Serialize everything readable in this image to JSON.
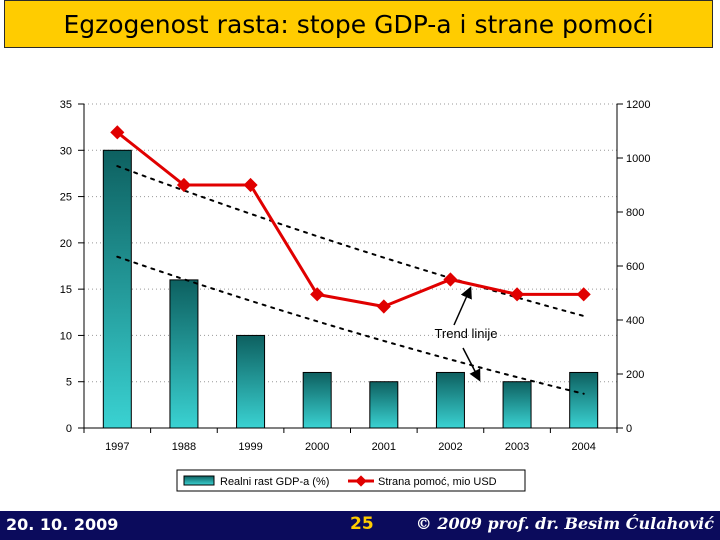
{
  "slide": {
    "title": "Egzogenost rasta: stope GDP-a i strane pomoći",
    "footer_date": "20. 10. 2009",
    "page_number": "25",
    "footer_copyright": "© 2009 prof. dr. Besim Ćulahović"
  },
  "chart_data": {
    "type": "bar",
    "categories": [
      "1997",
      "1988",
      "1999",
      "2000",
      "2001",
      "2002",
      "2003",
      "2004"
    ],
    "series": [
      {
        "name": "Realni rast GDP-a (%)",
        "type": "bar",
        "axis": "left",
        "values": [
          30,
          16,
          10,
          6,
          5,
          6,
          5,
          6
        ],
        "color": "#1e9f9f"
      },
      {
        "name": "Strana pomoć, mio USD",
        "type": "line",
        "axis": "right",
        "values": [
          1095,
          900,
          900,
          495,
          450,
          550,
          495,
          495
        ],
        "color": "#e00000"
      }
    ],
    "y_left": {
      "ylim": [
        0,
        35
      ],
      "ticks": [
        "0",
        "5",
        "10",
        "15",
        "20",
        "25",
        "30",
        "35"
      ]
    },
    "y_right": {
      "ylim": [
        0,
        1200
      ],
      "ticks": [
        "0",
        "200",
        "400",
        "600",
        "800",
        "1000",
        "1200"
      ]
    },
    "trendlines": [
      {
        "axis": "right",
        "start": 970,
        "end": 415
      },
      {
        "axis": "left",
        "start": 18.5,
        "end": 3.7
      }
    ],
    "annotation": "Trend linije",
    "legend_position": "bottom"
  }
}
